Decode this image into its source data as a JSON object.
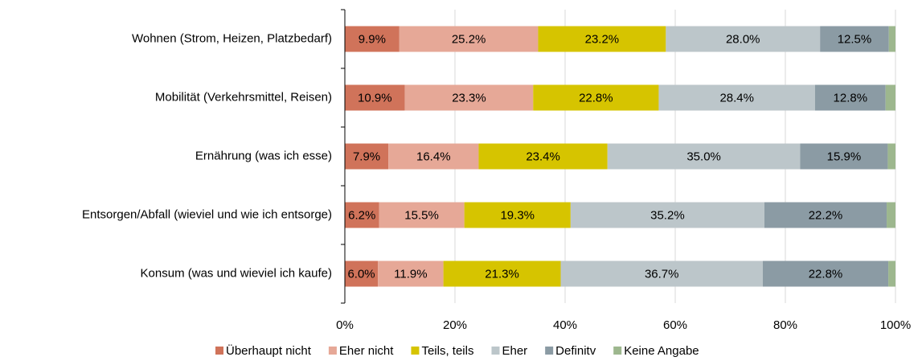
{
  "chart_data": {
    "type": "stacked-bar-horizontal",
    "categories": [
      "Wohnen (Strom, Heizen, Platzbedarf)",
      "Mobilität (Verkehrsmittel, Reisen)",
      "Ernährung (was ich esse)",
      "Entsorgen/Abfall (wieviel und wie ich entsorge)",
      "Konsum (was und wieviel ich kaufe)"
    ],
    "series": [
      {
        "name": "Überhaupt nicht",
        "color": "#d0735a",
        "values": [
          9.9,
          10.9,
          7.9,
          6.2,
          6.0
        ],
        "value_labels": [
          "9.9%",
          "10.9%",
          "7.9%",
          "6.2%",
          "6.0%"
        ]
      },
      {
        "name": "Eher nicht",
        "color": "#e6a897",
        "values": [
          25.2,
          23.3,
          16.4,
          15.5,
          11.9
        ],
        "value_labels": [
          "25.2%",
          "23.3%",
          "16.4%",
          "15.5%",
          "11.9%"
        ]
      },
      {
        "name": "Teils, teils",
        "color": "#d6c400",
        "values": [
          23.2,
          22.8,
          23.4,
          19.3,
          21.3
        ],
        "value_labels": [
          "23.2%",
          "22.8%",
          "23.4%",
          "19.3%",
          "21.3%"
        ]
      },
      {
        "name": "Eher",
        "color": "#bcc6ca",
        "values": [
          28.0,
          28.4,
          35.0,
          35.2,
          36.7
        ],
        "value_labels": [
          "28.0%",
          "28.4%",
          "35.0%",
          "35.2%",
          "36.7%"
        ]
      },
      {
        "name": "Definitv",
        "color": "#8b9ba4",
        "values": [
          12.5,
          12.8,
          15.9,
          22.2,
          22.8
        ],
        "value_labels": [
          "12.5%",
          "12.8%",
          "15.9%",
          "22.2%",
          "22.8%"
        ]
      },
      {
        "name": "Keine Angabe",
        "color": "#9db78e",
        "values": [
          1.2,
          1.8,
          1.4,
          1.6,
          1.3
        ]
      }
    ],
    "xlim": [
      0,
      100
    ],
    "xticks": [
      {
        "value": 0,
        "label": "0%"
      },
      {
        "value": 20,
        "label": "20%"
      },
      {
        "value": 40,
        "label": "40%"
      },
      {
        "value": 60,
        "label": "60%"
      },
      {
        "value": 80,
        "label": "80%"
      },
      {
        "value": 100,
        "label": "100%"
      }
    ],
    "grid": true,
    "legend": "bottom"
  }
}
